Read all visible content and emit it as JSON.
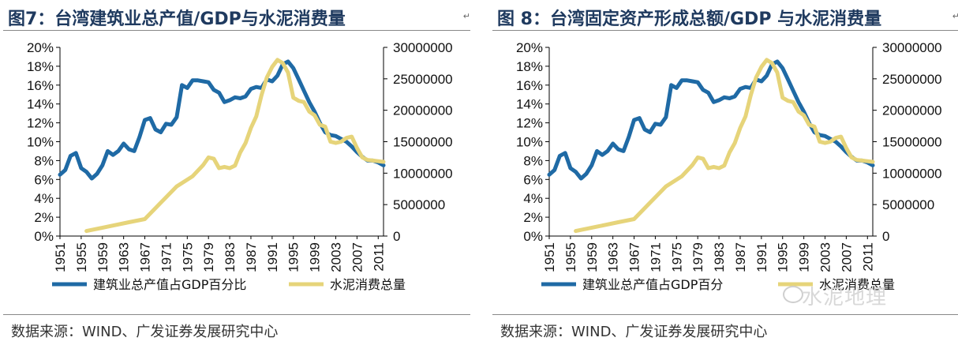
{
  "charts": [
    {
      "title": "图7：台湾建筑业总产值/GDP与水泥消费量",
      "source": "数据来源：WIND、广发证券发展研究中心",
      "watermark": ""
    },
    {
      "title": "图 8：台湾固定资产形成总额/GDP 与水泥消费量",
      "source": "数据来源：WIND、广发证券发展研究中心",
      "watermark": "水泥地理"
    }
  ],
  "colors": {
    "blue": "#1f6aa5",
    "yellow": "#e6d47a",
    "title": "#1f3a5f"
  },
  "chart_data": [
    {
      "type": "line",
      "x_ticks": [
        "1951",
        "1955",
        "1959",
        "1963",
        "1967",
        "1971",
        "1975",
        "1979",
        "1983",
        "1987",
        "1991",
        "1995",
        "1999",
        "2003",
        "2007",
        "2011"
      ],
      "y_left": {
        "ticks": [
          "0%",
          "2%",
          "4%",
          "6%",
          "8%",
          "10%",
          "12%",
          "14%",
          "16%",
          "18%",
          "20%"
        ],
        "range": [
          0,
          20
        ]
      },
      "y_right": {
        "ticks": [
          "0",
          "5000000",
          "10000000",
          "15000000",
          "20000000",
          "25000000",
          "30000000"
        ],
        "range": [
          0,
          30000000
        ]
      },
      "series": [
        {
          "name": "建筑业总产值占GDP百分比",
          "axis": "left",
          "color": "#1f6aa5",
          "x": [
            1951,
            1952,
            1953,
            1954,
            1955,
            1956,
            1957,
            1958,
            1959,
            1960,
            1961,
            1962,
            1963,
            1964,
            1965,
            1966,
            1967,
            1968,
            1969,
            1970,
            1971,
            1972,
            1973,
            1974,
            1975,
            1976,
            1977,
            1978,
            1979,
            1980,
            1981,
            1982,
            1983,
            1984,
            1985,
            1986,
            1987,
            1988,
            1989,
            1990,
            1991,
            1992,
            1993,
            1994,
            1995,
            1996,
            1997,
            1998,
            1999,
            2000,
            2001,
            2002,
            2003,
            2004,
            2005,
            2006,
            2007,
            2008,
            2009,
            2010,
            2011,
            2012
          ],
          "y": [
            6.5,
            7.0,
            8.5,
            8.8,
            7.2,
            6.8,
            6.1,
            6.6,
            7.5,
            9.0,
            8.6,
            9.0,
            9.8,
            9.2,
            9.0,
            10.5,
            12.3,
            12.5,
            11.3,
            11.0,
            11.9,
            11.8,
            12.6,
            16.0,
            15.7,
            16.5,
            16.5,
            16.4,
            16.3,
            15.5,
            15.2,
            14.2,
            14.4,
            14.7,
            14.6,
            14.8,
            15.6,
            15.8,
            15.7,
            16.6,
            16.4,
            17.0,
            18.2,
            18.5,
            17.8,
            16.6,
            15.4,
            14.2,
            13.2,
            12.0,
            11.0,
            10.7,
            10.6,
            10.3,
            10.0,
            9.5,
            8.9,
            8.4,
            8.0,
            8.0,
            7.8,
            7.5
          ]
        },
        {
          "name": "水泥消费总量",
          "axis": "right",
          "color": "#e6d47a",
          "x": [
            1956,
            1960,
            1964,
            1967,
            1970,
            1973,
            1976,
            1978,
            1979,
            1980,
            1981,
            1982,
            1983,
            1984,
            1985,
            1986,
            1987,
            1988,
            1989,
            1990,
            1991,
            1992,
            1993,
            1994,
            1995,
            1996,
            1997,
            1998,
            1999,
            2000,
            2001,
            2002,
            2003,
            2004,
            2005,
            2006,
            2007,
            2008,
            2009,
            2010,
            2011,
            2012
          ],
          "y": [
            800000,
            1500000,
            2200000,
            2700000,
            5300000,
            7900000,
            9500000,
            11300000,
            12500000,
            12300000,
            10800000,
            11000000,
            10800000,
            11200000,
            13300000,
            14800000,
            17200000,
            19000000,
            22400000,
            25200000,
            26900000,
            28000000,
            27500000,
            26000000,
            22000000,
            21500000,
            21300000,
            19800000,
            19200000,
            17700000,
            17400000,
            15000000,
            14800000,
            15000000,
            15600000,
            15800000,
            14000000,
            12500000,
            12100000,
            12000000,
            11900000,
            11800000
          ]
        }
      ]
    },
    {
      "type": "line",
      "x_ticks": [
        "1951",
        "1955",
        "1959",
        "1963",
        "1967",
        "1971",
        "1975",
        "1979",
        "1983",
        "1987",
        "1991",
        "1995",
        "1999",
        "2003",
        "2007",
        "2011"
      ],
      "y_left": {
        "ticks": [
          "0%",
          "2%",
          "4%",
          "6%",
          "8%",
          "10%",
          "12%",
          "14%",
          "16%",
          "18%",
          "20%"
        ],
        "range": [
          0,
          20
        ]
      },
      "y_right": {
        "ticks": [
          "0",
          "5000000",
          "10000000",
          "15000000",
          "20000000",
          "25000000",
          "30000000"
        ],
        "range": [
          0,
          30000000
        ]
      },
      "series": [
        {
          "name": "建筑业总产值占GDP百分",
          "axis": "left",
          "color": "#1f6aa5",
          "x": [
            1951,
            1952,
            1953,
            1954,
            1955,
            1956,
            1957,
            1958,
            1959,
            1960,
            1961,
            1962,
            1963,
            1964,
            1965,
            1966,
            1967,
            1968,
            1969,
            1970,
            1971,
            1972,
            1973,
            1974,
            1975,
            1976,
            1977,
            1978,
            1979,
            1980,
            1981,
            1982,
            1983,
            1984,
            1985,
            1986,
            1987,
            1988,
            1989,
            1990,
            1991,
            1992,
            1993,
            1994,
            1995,
            1996,
            1997,
            1998,
            1999,
            2000,
            2001,
            2002,
            2003,
            2004,
            2005,
            2006,
            2007,
            2008,
            2009,
            2010,
            2011,
            2012
          ],
          "y": [
            6.5,
            7.0,
            8.5,
            8.8,
            7.2,
            6.8,
            6.1,
            6.6,
            7.5,
            9.0,
            8.6,
            9.0,
            9.8,
            9.2,
            9.0,
            10.5,
            12.3,
            12.5,
            11.3,
            11.0,
            11.9,
            11.8,
            12.6,
            16.0,
            15.7,
            16.5,
            16.5,
            16.4,
            16.3,
            15.5,
            15.2,
            14.2,
            14.4,
            14.7,
            14.6,
            14.8,
            15.6,
            15.8,
            15.7,
            16.6,
            16.4,
            17.0,
            18.2,
            18.5,
            17.8,
            16.6,
            15.4,
            14.2,
            13.2,
            12.0,
            11.0,
            10.7,
            10.6,
            10.3,
            10.0,
            9.5,
            8.9,
            8.4,
            8.0,
            8.0,
            7.8,
            7.5
          ]
        },
        {
          "name": "水泥消费总量",
          "axis": "right",
          "color": "#e6d47a",
          "x": [
            1956,
            1960,
            1964,
            1967,
            1970,
            1973,
            1976,
            1978,
            1979,
            1980,
            1981,
            1982,
            1983,
            1984,
            1985,
            1986,
            1987,
            1988,
            1989,
            1990,
            1991,
            1992,
            1993,
            1994,
            1995,
            1996,
            1997,
            1998,
            1999,
            2000,
            2001,
            2002,
            2003,
            2004,
            2005,
            2006,
            2007,
            2008,
            2009,
            2010,
            2011,
            2012
          ],
          "y": [
            800000,
            1500000,
            2200000,
            2700000,
            5300000,
            7900000,
            9500000,
            11300000,
            12500000,
            12300000,
            10800000,
            11000000,
            10800000,
            11200000,
            13300000,
            14800000,
            17200000,
            19000000,
            22400000,
            25200000,
            26900000,
            28000000,
            27500000,
            26000000,
            22000000,
            21500000,
            21300000,
            19800000,
            19200000,
            17700000,
            17400000,
            15000000,
            14800000,
            15000000,
            15600000,
            15800000,
            14000000,
            12500000,
            12100000,
            12000000,
            11900000,
            11800000
          ]
        }
      ]
    }
  ]
}
